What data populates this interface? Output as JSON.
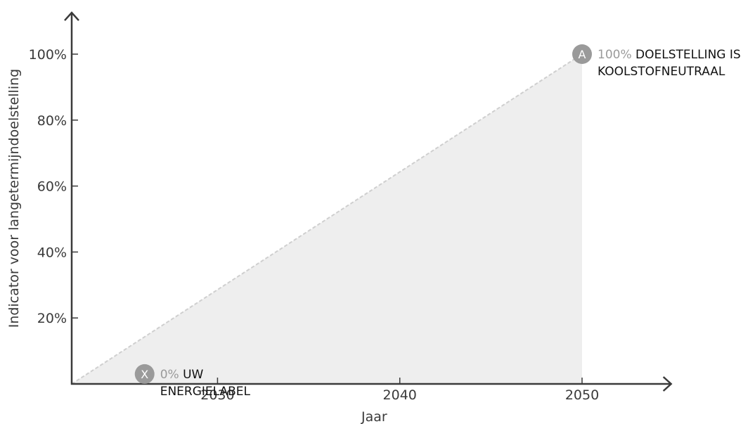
{
  "chart_data": {
    "type": "area",
    "x": [
      2022,
      2050
    ],
    "y": [
      0,
      100
    ],
    "xlabel": "Jaar",
    "ylabel": "Indicator voor langetermijndoelstelling",
    "xlim": [
      2022,
      2055
    ],
    "ylim": [
      0,
      113
    ],
    "xticks": [
      2030,
      2040,
      2050
    ],
    "xtick_labels": [
      "2030",
      "2040",
      "2050"
    ],
    "yticks": [
      20,
      40,
      60,
      80,
      100
    ],
    "ytick_labels": [
      "20%",
      "40%",
      "60%",
      "80%",
      "100%"
    ],
    "fill_color": "#eeeeee",
    "line_color": "#cfcfcf",
    "axis_color": "#3a3a3a",
    "marker_color": "#9a9a9a",
    "markers": [
      {
        "id": "start",
        "letter": "X",
        "x": 2026,
        "y": 3,
        "pct": "0%",
        "text_lines": [
          "UW",
          "ENERGIELABEL"
        ]
      },
      {
        "id": "end",
        "letter": "A",
        "x": 2050,
        "y": 100,
        "pct": "100%",
        "text_lines": [
          "DOELSTELLING IS",
          "KOOLSTOFNEUTRAAL"
        ]
      }
    ]
  }
}
